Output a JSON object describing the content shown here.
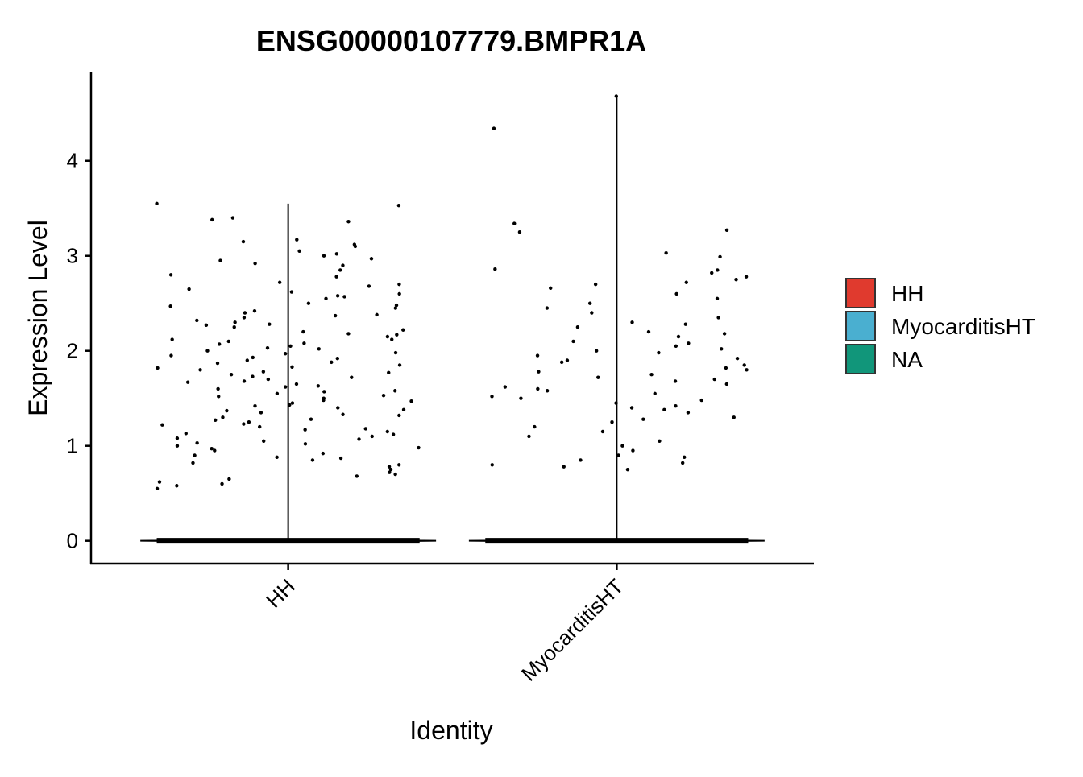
{
  "chart_data": {
    "type": "violin",
    "title": "ENSG00000107779.BMPR1A",
    "x_label": "Identity",
    "y_label": "Expression Level",
    "categories": [
      "HH",
      "MyocarditisHT"
    ],
    "ylim": [
      -0.24,
      4.93
    ],
    "yticks": [
      0,
      1,
      2,
      3,
      4
    ],
    "series": [
      {
        "name": "HH",
        "color": "#e03a2e",
        "values": [
          0,
          0,
          0,
          0,
          0,
          0,
          3.55,
          3.53,
          3.4,
          3.38,
          3.36,
          3.17,
          3.15,
          3.12,
          3.1,
          3.05,
          3.02,
          3.0,
          2.97,
          2.95,
          2.92,
          2.9,
          2.85,
          2.8,
          2.78,
          2.72,
          2.7,
          2.68,
          2.65,
          2.62,
          2.6,
          2.58,
          2.55,
          2.5,
          2.48,
          2.45,
          2.42,
          2.4,
          2.38,
          2.35,
          2.32,
          2.3,
          2.28,
          2.25,
          2.22,
          2.2,
          2.18,
          2.15,
          2.12,
          2.1,
          2.08,
          2.05,
          2.03,
          2.0,
          1.98,
          1.95,
          1.93,
          1.9,
          1.88,
          1.85,
          1.83,
          1.8,
          1.78,
          1.75,
          1.73,
          1.7,
          1.68,
          1.65,
          1.63,
          1.6,
          1.58,
          1.55,
          1.53,
          1.5,
          1.48,
          1.45,
          1.43,
          1.4,
          1.38,
          1.35,
          1.33,
          1.3,
          1.28,
          1.25,
          1.23,
          1.2,
          1.18,
          1.15,
          1.13,
          1.1,
          1.08,
          1.05,
          1.03,
          1.0,
          0.98,
          0.95,
          0.92,
          0.9,
          0.88,
          0.85,
          0.82,
          0.8,
          0.78,
          0.75,
          0.72,
          0.7,
          0.68,
          0.65,
          0.62,
          0.6,
          0.58,
          0.55,
          2.02,
          1.87,
          1.72,
          1.62,
          1.92,
          2.07,
          1.77,
          1.52,
          1.42,
          2.12,
          1.67,
          1.97,
          1.82,
          2.17,
          1.57,
          1.32,
          1.22,
          1.12,
          2.27,
          1.47,
          1.02,
          2.37,
          1.37,
          1.27,
          0.97,
          1.17,
          2.47,
          1.07,
          0.87,
          2.57
        ]
      },
      {
        "name": "MyocarditisHT",
        "color": "#4aafd0",
        "values": [
          0,
          0,
          0,
          0,
          0,
          0,
          4.68,
          4.34,
          3.34,
          3.27,
          3.25,
          3.03,
          2.99,
          2.86,
          2.85,
          2.82,
          2.78,
          2.75,
          2.72,
          2.7,
          2.66,
          2.6,
          2.55,
          2.5,
          2.45,
          2.4,
          2.35,
          2.3,
          2.25,
          2.2,
          2.15,
          2.1,
          2.05,
          2.0,
          1.95,
          1.9,
          1.85,
          1.8,
          1.75,
          1.7,
          1.65,
          1.6,
          1.55,
          1.5,
          1.45,
          1.4,
          1.35,
          1.3,
          1.25,
          1.2,
          1.15,
          1.1,
          1.05,
          1.0,
          0.95,
          0.9,
          0.88,
          0.85,
          0.82,
          0.8,
          0.78,
          0.75,
          1.78,
          1.68,
          1.88,
          1.58,
          1.98,
          1.72,
          1.62,
          2.08,
          1.48,
          1.82,
          2.18,
          1.38,
          1.92,
          1.52,
          2.28,
          1.28,
          1.42,
          2.02
        ]
      },
      {
        "name": "NA",
        "color": "#11967a",
        "values": []
      }
    ]
  }
}
